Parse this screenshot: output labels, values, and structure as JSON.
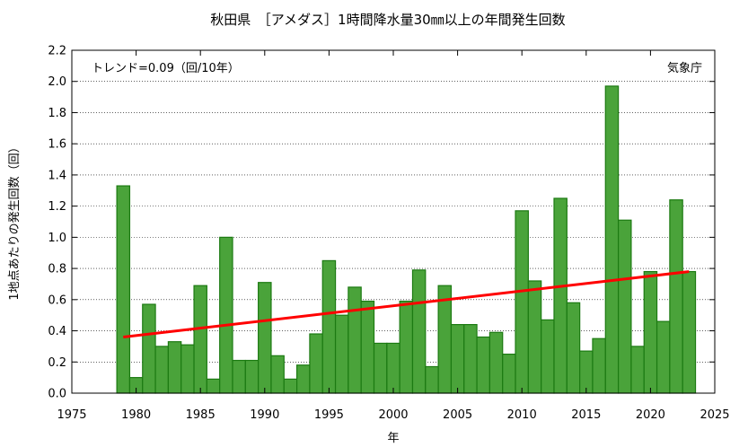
{
  "chart_data": {
    "type": "bar",
    "title": "秋田県　［アメダス］1時間降水量30㎜以上の年間発生回数",
    "xlabel": "年",
    "ylabel": "1地点あたりの発生回数（回）",
    "trend_label": "トレンド=0.09（回/10年）",
    "source_label": "気象庁",
    "xlim": [
      1975,
      2025
    ],
    "ylim": [
      0,
      2.2
    ],
    "x_ticks": [
      1975,
      1980,
      1985,
      1990,
      1995,
      2000,
      2005,
      2010,
      2015,
      2020,
      2025
    ],
    "y_ticks": [
      "0.0",
      "0.2",
      "0.4",
      "0.6",
      "0.8",
      "1.0",
      "1.2",
      "1.4",
      "1.6",
      "1.8",
      "2.0",
      "2.2"
    ],
    "grid": true,
    "bar_color": "#4aa33a",
    "bar_edge_color": "#1c7a12",
    "trend_color": "#ff0000",
    "years": [
      1979,
      1980,
      1981,
      1982,
      1983,
      1984,
      1985,
      1986,
      1987,
      1988,
      1989,
      1990,
      1991,
      1992,
      1993,
      1994,
      1995,
      1996,
      1997,
      1998,
      1999,
      2000,
      2001,
      2002,
      2003,
      2004,
      2005,
      2006,
      2007,
      2008,
      2009,
      2010,
      2011,
      2012,
      2013,
      2014,
      2015,
      2016,
      2017,
      2018,
      2019,
      2020,
      2021,
      2022,
      2023
    ],
    "values": [
      1.33,
      0.1,
      0.57,
      0.3,
      0.33,
      0.31,
      0.69,
      0.09,
      1.0,
      0.21,
      0.21,
      0.71,
      0.24,
      0.09,
      0.18,
      0.38,
      0.85,
      0.5,
      0.68,
      0.59,
      0.32,
      0.32,
      0.59,
      0.79,
      0.17,
      0.69,
      0.44,
      0.44,
      0.36,
      0.39,
      0.25,
      1.17,
      0.72,
      0.47,
      1.25,
      0.58,
      0.27,
      0.35,
      1.97,
      1.11,
      0.3,
      0.78,
      0.46,
      1.24,
      0.78
    ],
    "trend": {
      "x": [
        1979,
        2023
      ],
      "y": [
        0.36,
        0.78
      ]
    }
  }
}
